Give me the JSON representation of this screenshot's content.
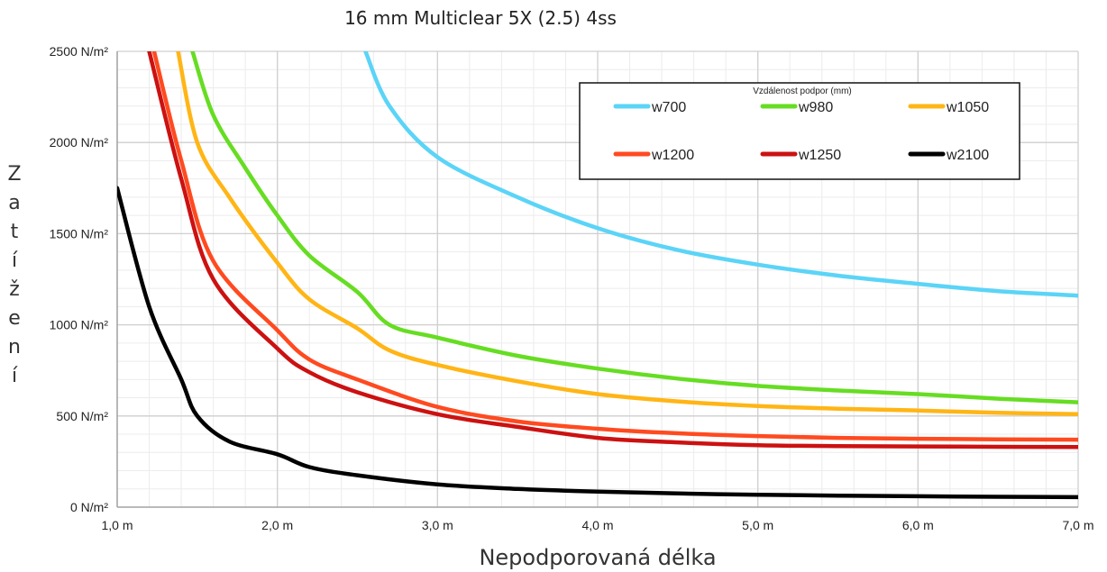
{
  "chart_data": {
    "type": "line",
    "title": "16 mm Multiclear  5X (2.5) 4ss",
    "xlabel": "Nepodporovaná délka",
    "ylabel": "Zatížení",
    "xlim": [
      1.0,
      7.0
    ],
    "ylim": [
      0,
      2500
    ],
    "x_ticks": [
      "1,0 m",
      "2,0 m",
      "3,0 m",
      "4,0 m",
      "5,0 m",
      "6,0 m",
      "7,0 m"
    ],
    "y_ticks": [
      "0 N/m²",
      "500 N/m²",
      "1000 N/m²",
      "1500 N/m²",
      "2000 N/m²",
      "2500 N/m²"
    ],
    "grid": true,
    "legend_title": "Vzdálenost podpor (mm)",
    "legend_position": "top-right",
    "series": [
      {
        "name": "w700",
        "color": "#5bd4f7",
        "points": [
          [
            2.55,
            2500
          ],
          [
            2.7,
            2200
          ],
          [
            3.0,
            1920
          ],
          [
            3.5,
            1700
          ],
          [
            4.0,
            1530
          ],
          [
            4.5,
            1410
          ],
          [
            5.0,
            1330
          ],
          [
            5.5,
            1270
          ],
          [
            6.0,
            1225
          ],
          [
            6.5,
            1185
          ],
          [
            7.0,
            1160
          ]
        ]
      },
      {
        "name": "w980",
        "color": "#66dd22",
        "points": [
          [
            1.47,
            2500
          ],
          [
            1.6,
            2150
          ],
          [
            1.8,
            1860
          ],
          [
            2.0,
            1600
          ],
          [
            2.2,
            1380
          ],
          [
            2.5,
            1180
          ],
          [
            2.7,
            1000
          ],
          [
            3.0,
            930
          ],
          [
            3.5,
            830
          ],
          [
            4.0,
            760
          ],
          [
            4.5,
            705
          ],
          [
            5.0,
            665
          ],
          [
            5.5,
            640
          ],
          [
            6.0,
            620
          ],
          [
            6.5,
            595
          ],
          [
            7.0,
            575
          ]
        ]
      },
      {
        "name": "w1050",
        "color": "#ffb515",
        "points": [
          [
            1.38,
            2500
          ],
          [
            1.5,
            2000
          ],
          [
            1.7,
            1700
          ],
          [
            2.0,
            1340
          ],
          [
            2.2,
            1140
          ],
          [
            2.5,
            980
          ],
          [
            2.7,
            860
          ],
          [
            3.0,
            780
          ],
          [
            3.5,
            690
          ],
          [
            4.0,
            620
          ],
          [
            4.5,
            580
          ],
          [
            5.0,
            555
          ],
          [
            5.5,
            540
          ],
          [
            6.0,
            530
          ],
          [
            6.5,
            518
          ],
          [
            7.0,
            510
          ]
        ]
      },
      {
        "name": "w1200",
        "color": "#ff4a20",
        "points": [
          [
            1.23,
            2500
          ],
          [
            1.4,
            1900
          ],
          [
            1.6,
            1350
          ],
          [
            2.0,
            970
          ],
          [
            2.2,
            810
          ],
          [
            2.5,
            700
          ],
          [
            3.0,
            550
          ],
          [
            3.5,
            470
          ],
          [
            4.0,
            430
          ],
          [
            4.5,
            405
          ],
          [
            5.0,
            390
          ],
          [
            5.5,
            380
          ],
          [
            6.0,
            375
          ],
          [
            6.5,
            372
          ],
          [
            7.0,
            370
          ]
        ]
      },
      {
        "name": "w1250",
        "color": "#cc1111",
        "points": [
          [
            1.2,
            2500
          ],
          [
            1.4,
            1800
          ],
          [
            1.6,
            1250
          ],
          [
            2.0,
            870
          ],
          [
            2.2,
            740
          ],
          [
            2.5,
            630
          ],
          [
            3.0,
            510
          ],
          [
            3.5,
            440
          ],
          [
            4.0,
            380
          ],
          [
            4.5,
            355
          ],
          [
            5.0,
            340
          ],
          [
            5.5,
            335
          ],
          [
            6.0,
            333
          ],
          [
            6.5,
            331
          ],
          [
            7.0,
            330
          ]
        ]
      },
      {
        "name": "w2100",
        "color": "#000000",
        "points": [
          [
            1.0,
            1750
          ],
          [
            1.2,
            1100
          ],
          [
            1.4,
            700
          ],
          [
            1.5,
            500
          ],
          [
            1.7,
            360
          ],
          [
            2.0,
            290
          ],
          [
            2.2,
            220
          ],
          [
            2.5,
            175
          ],
          [
            3.0,
            125
          ],
          [
            3.5,
            100
          ],
          [
            4.0,
            85
          ],
          [
            4.5,
            75
          ],
          [
            5.0,
            68
          ],
          [
            5.5,
            63
          ],
          [
            6.0,
            60
          ],
          [
            6.5,
            57
          ],
          [
            7.0,
            55
          ]
        ]
      }
    ]
  }
}
